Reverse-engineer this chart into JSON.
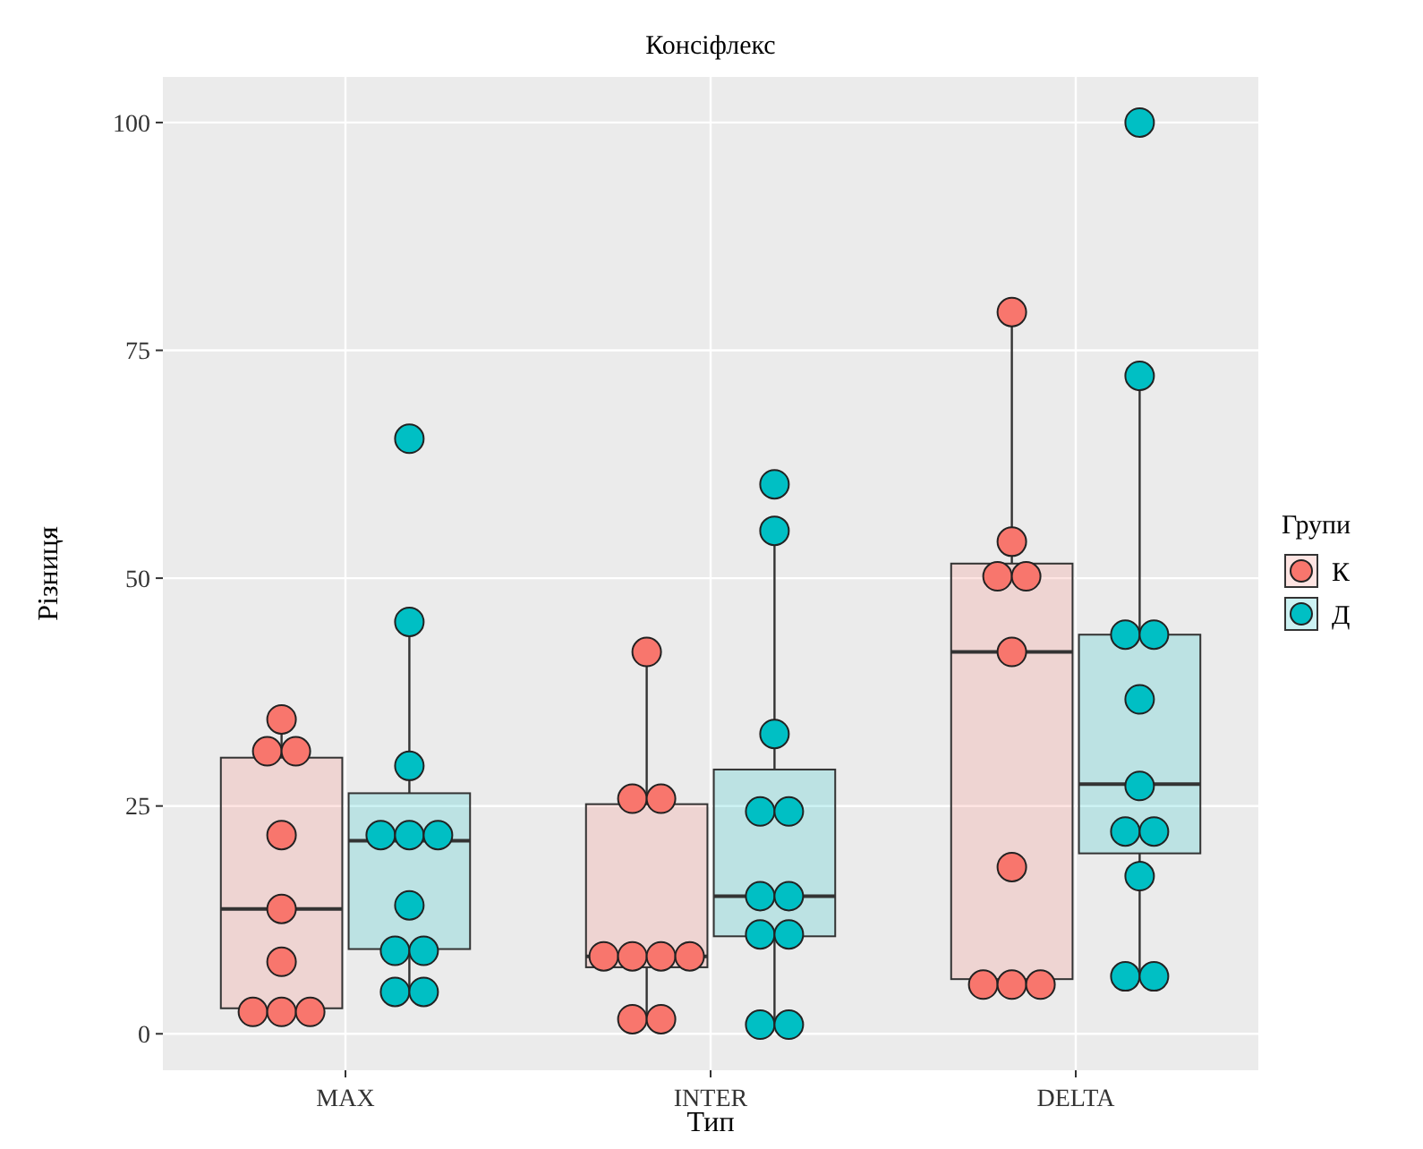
{
  "chart_data": {
    "type": "box",
    "title": "Консіфлекс",
    "xlabel": "Тип",
    "ylabel": "Різниця",
    "legend_title": "Групи",
    "categories": [
      "MAX",
      "INTER",
      "DELTA"
    ],
    "series": [
      {
        "name": "К",
        "color": "#f8766d",
        "type": "box",
        "boxes": [
          {
            "low": 2.4,
            "q1": 2.8,
            "median": 13.7,
            "q3": 30.3,
            "high": 34.5
          },
          {
            "low": 1.6,
            "q1": 7.3,
            "median": 8.5,
            "q3": 25.2,
            "high": 41.9
          },
          {
            "low": 5.4,
            "q1": 6.0,
            "median": 41.9,
            "q3": 51.6,
            "high": 79.2
          }
        ]
      },
      {
        "name": "Д",
        "color": "#00bfc4",
        "type": "box",
        "boxes": [
          {
            "low": 4.6,
            "q1": 9.3,
            "median": 21.2,
            "q3": 26.4,
            "high": 45.2
          },
          {
            "low": 1.0,
            "q1": 10.7,
            "median": 15.1,
            "q3": 29.0,
            "high": 55.2
          },
          {
            "low": 6.3,
            "q1": 19.8,
            "median": 27.4,
            "q3": 43.8,
            "high": 72.2
          }
        ]
      },
      {
        "type": "scatter",
        "color": "#f8766d",
        "x": [
          "MAX",
          "MAX",
          "MAX",
          "MAX",
          "MAX",
          "MAX",
          "MAX",
          "MAX",
          "MAX",
          "INTER",
          "INTER",
          "INTER",
          "INTER",
          "INTER",
          "INTER",
          "INTER",
          "INTER",
          "INTER",
          "DELTA",
          "DELTA",
          "DELTA",
          "DELTA",
          "DELTA",
          "DELTA",
          "DELTA",
          "DELTA",
          "DELTA"
        ],
        "values": [
          34.5,
          31,
          31,
          21.8,
          13.7,
          7.9,
          2.4,
          2.4,
          2.4,
          41.9,
          25.8,
          25.8,
          8.5,
          8.5,
          8.5,
          8.5,
          1.6,
          1.6,
          79.2,
          54,
          50.2,
          50.2,
          41.9,
          18.3,
          5.4,
          5.4,
          5.4
        ]
      },
      {
        "type": "scatter",
        "color": "#00bfc4",
        "x": [
          "MAX",
          "MAX",
          "MAX",
          "MAX",
          "MAX",
          "MAX",
          "MAX",
          "MAX",
          "MAX",
          "MAX",
          "MAX",
          "INTER",
          "INTER",
          "INTER",
          "INTER",
          "INTER",
          "INTER",
          "INTER",
          "INTER",
          "INTER",
          "INTER",
          "INTER",
          "DELTA",
          "DELTA",
          "DELTA",
          "DELTA",
          "DELTA",
          "DELTA",
          "DELTA",
          "DELTA",
          "DELTA",
          "DELTA",
          "DELTA"
        ],
        "values": [
          65.3,
          45.2,
          29.4,
          21.8,
          21.8,
          21.8,
          14.1,
          9.1,
          9.1,
          4.6,
          4.6,
          60.3,
          55.2,
          32.9,
          24.4,
          24.4,
          15.1,
          15.1,
          10.9,
          10.9,
          1.0,
          1.0,
          100,
          72.2,
          43.8,
          43.8,
          36.7,
          27.2,
          22.2,
          22.2,
          17.3,
          6.3,
          6.3
        ]
      }
    ],
    "ylim": [
      -4,
      105
    ],
    "yticks": [
      0,
      25,
      50,
      75,
      100
    ],
    "grid": true,
    "legend": "right",
    "marker": "circle"
  }
}
